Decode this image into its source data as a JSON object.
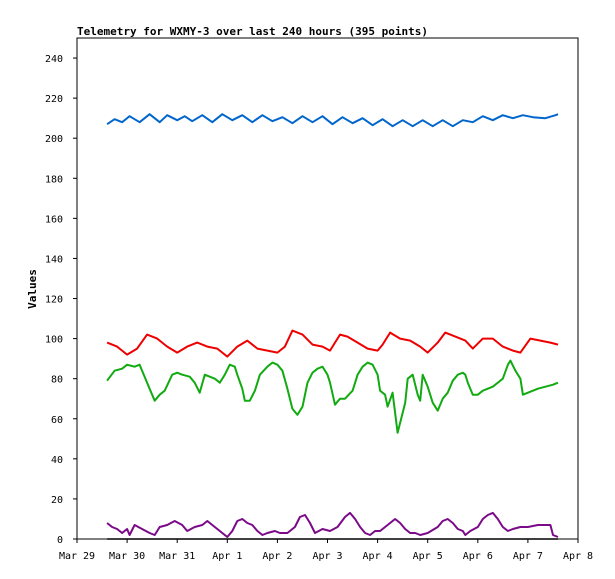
{
  "chart_data": {
    "type": "line",
    "title": "Telemetry for WXMY-3 over last 240 hours (395 points)",
    "xlabel": "",
    "ylabel": "Values",
    "ylim": [
      0,
      250
    ],
    "xlim": [
      "Mar 29",
      "Apr 8"
    ],
    "yticks": [
      0,
      20,
      40,
      60,
      80,
      100,
      120,
      140,
      160,
      180,
      200,
      220,
      240
    ],
    "xticks": [
      "Mar 29",
      "Mar 30",
      "Mar 31",
      "Apr 1",
      "Apr 2",
      "Apr 3",
      "Apr 4",
      "Apr 5",
      "Apr 6",
      "Apr 7",
      "Apr 8"
    ],
    "x_unit": "days since Mar 29 00:00",
    "grid": false,
    "legend": "none",
    "series": [
      {
        "color": "#0066cc",
        "points": [
          [
            0.6,
            207
          ],
          [
            0.75,
            209.5
          ],
          [
            0.9,
            208
          ],
          [
            1.05,
            211
          ],
          [
            1.25,
            208
          ],
          [
            1.45,
            212
          ],
          [
            1.65,
            208
          ],
          [
            1.8,
            211.5
          ],
          [
            2.0,
            209
          ],
          [
            2.15,
            211
          ],
          [
            2.3,
            208.5
          ],
          [
            2.5,
            211.5
          ],
          [
            2.7,
            208
          ],
          [
            2.9,
            212
          ],
          [
            3.1,
            209
          ],
          [
            3.3,
            211.5
          ],
          [
            3.5,
            208
          ],
          [
            3.7,
            211.5
          ],
          [
            3.9,
            208.5
          ],
          [
            4.1,
            210.5
          ],
          [
            4.3,
            207.5
          ],
          [
            4.5,
            211
          ],
          [
            4.7,
            208
          ],
          [
            4.9,
            211
          ],
          [
            5.1,
            207
          ],
          [
            5.3,
            210.5
          ],
          [
            5.5,
            207.5
          ],
          [
            5.7,
            210
          ],
          [
            5.9,
            206.5
          ],
          [
            6.1,
            209.5
          ],
          [
            6.3,
            206
          ],
          [
            6.5,
            209
          ],
          [
            6.7,
            206
          ],
          [
            6.9,
            209
          ],
          [
            7.1,
            206
          ],
          [
            7.3,
            209
          ],
          [
            7.5,
            206
          ],
          [
            7.7,
            209
          ],
          [
            7.9,
            208
          ],
          [
            8.1,
            211
          ],
          [
            8.3,
            209
          ],
          [
            8.5,
            211.5
          ],
          [
            8.7,
            210
          ],
          [
            8.9,
            211.5
          ],
          [
            9.1,
            210.5
          ],
          [
            9.35,
            210
          ],
          [
            9.55,
            211.5
          ],
          [
            9.6,
            212
          ]
        ]
      },
      {
        "color": "#ee0000",
        "points": [
          [
            0.6,
            98
          ],
          [
            0.8,
            96
          ],
          [
            1.0,
            92
          ],
          [
            1.2,
            95
          ],
          [
            1.4,
            102
          ],
          [
            1.6,
            100
          ],
          [
            1.8,
            96
          ],
          [
            2.0,
            93
          ],
          [
            2.2,
            96
          ],
          [
            2.4,
            98
          ],
          [
            2.6,
            96
          ],
          [
            2.8,
            95
          ],
          [
            3.0,
            91
          ],
          [
            3.2,
            96
          ],
          [
            3.4,
            99
          ],
          [
            3.6,
            95
          ],
          [
            3.8,
            94
          ],
          [
            4.0,
            93
          ],
          [
            4.15,
            96
          ],
          [
            4.3,
            104
          ],
          [
            4.5,
            102
          ],
          [
            4.7,
            97
          ],
          [
            4.9,
            96
          ],
          [
            5.05,
            94
          ],
          [
            5.25,
            102
          ],
          [
            5.4,
            101
          ],
          [
            5.6,
            98
          ],
          [
            5.8,
            95
          ],
          [
            6.0,
            94
          ],
          [
            6.1,
            97
          ],
          [
            6.25,
            103
          ],
          [
            6.45,
            100
          ],
          [
            6.65,
            99
          ],
          [
            6.85,
            96
          ],
          [
            7.0,
            93
          ],
          [
            7.2,
            98
          ],
          [
            7.35,
            103
          ],
          [
            7.55,
            101
          ],
          [
            7.75,
            99
          ],
          [
            7.9,
            95
          ],
          [
            8.1,
            100
          ],
          [
            8.3,
            100
          ],
          [
            8.5,
            96
          ],
          [
            8.7,
            94
          ],
          [
            8.85,
            93
          ],
          [
            9.05,
            100
          ],
          [
            9.25,
            99
          ],
          [
            9.45,
            98
          ],
          [
            9.6,
            97
          ]
        ]
      },
      {
        "color": "#11aa11",
        "points": [
          [
            0.6,
            79
          ],
          [
            0.75,
            84
          ],
          [
            0.9,
            85
          ],
          [
            1.0,
            87
          ],
          [
            1.15,
            86
          ],
          [
            1.25,
            87
          ],
          [
            1.45,
            75
          ],
          [
            1.55,
            69
          ],
          [
            1.65,
            72
          ],
          [
            1.75,
            74
          ],
          [
            1.9,
            82
          ],
          [
            2.0,
            83
          ],
          [
            2.1,
            82
          ],
          [
            2.25,
            81
          ],
          [
            2.35,
            78
          ],
          [
            2.45,
            73
          ],
          [
            2.55,
            82
          ],
          [
            2.75,
            80
          ],
          [
            2.85,
            78
          ],
          [
            2.95,
            82
          ],
          [
            3.05,
            87
          ],
          [
            3.15,
            86
          ],
          [
            3.2,
            82
          ],
          [
            3.3,
            75
          ],
          [
            3.35,
            69
          ],
          [
            3.45,
            69
          ],
          [
            3.55,
            74
          ],
          [
            3.65,
            82
          ],
          [
            3.8,
            86
          ],
          [
            3.9,
            88
          ],
          [
            4.0,
            87
          ],
          [
            4.1,
            84
          ],
          [
            4.2,
            75
          ],
          [
            4.3,
            65
          ],
          [
            4.4,
            62
          ],
          [
            4.5,
            66
          ],
          [
            4.6,
            78
          ],
          [
            4.7,
            83
          ],
          [
            4.8,
            85
          ],
          [
            4.9,
            86
          ],
          [
            5.0,
            82
          ],
          [
            5.05,
            78
          ],
          [
            5.15,
            67
          ],
          [
            5.25,
            70
          ],
          [
            5.35,
            70
          ],
          [
            5.5,
            74
          ],
          [
            5.6,
            82
          ],
          [
            5.7,
            86
          ],
          [
            5.8,
            88
          ],
          [
            5.9,
            87
          ],
          [
            6.0,
            82
          ],
          [
            6.05,
            74
          ],
          [
            6.15,
            72
          ],
          [
            6.2,
            66
          ],
          [
            6.3,
            73
          ],
          [
            6.4,
            53
          ],
          [
            6.5,
            63
          ],
          [
            6.55,
            68
          ],
          [
            6.6,
            80
          ],
          [
            6.7,
            82
          ],
          [
            6.8,
            72
          ],
          [
            6.85,
            69
          ],
          [
            6.9,
            82
          ],
          [
            7.0,
            76
          ],
          [
            7.1,
            68
          ],
          [
            7.2,
            64
          ],
          [
            7.3,
            70
          ],
          [
            7.4,
            73
          ],
          [
            7.5,
            79
          ],
          [
            7.6,
            82
          ],
          [
            7.7,
            83
          ],
          [
            7.75,
            82
          ],
          [
            7.8,
            78
          ],
          [
            7.9,
            72
          ],
          [
            8.0,
            72
          ],
          [
            8.1,
            74
          ],
          [
            8.2,
            75
          ],
          [
            8.3,
            76
          ],
          [
            8.5,
            80
          ],
          [
            8.6,
            87
          ],
          [
            8.65,
            89
          ],
          [
            8.75,
            84
          ],
          [
            8.85,
            80
          ],
          [
            8.9,
            72
          ],
          [
            9.0,
            73
          ],
          [
            9.2,
            75
          ],
          [
            9.35,
            76
          ],
          [
            9.5,
            77
          ],
          [
            9.6,
            78
          ]
        ]
      },
      {
        "color": "#7a0a88",
        "points": [
          [
            0.6,
            8
          ],
          [
            0.7,
            6
          ],
          [
            0.8,
            5
          ],
          [
            0.9,
            3
          ],
          [
            1.0,
            5
          ],
          [
            1.05,
            2
          ],
          [
            1.15,
            7
          ],
          [
            1.3,
            5
          ],
          [
            1.45,
            3
          ],
          [
            1.55,
            2
          ],
          [
            1.65,
            6
          ],
          [
            1.8,
            7
          ],
          [
            1.95,
            9
          ],
          [
            2.1,
            7
          ],
          [
            2.2,
            4
          ],
          [
            2.35,
            6
          ],
          [
            2.5,
            7
          ],
          [
            2.6,
            9
          ],
          [
            2.75,
            6
          ],
          [
            2.9,
            3
          ],
          [
            3.0,
            1
          ],
          [
            3.1,
            4
          ],
          [
            3.2,
            9
          ],
          [
            3.3,
            10
          ],
          [
            3.4,
            8
          ],
          [
            3.5,
            7
          ],
          [
            3.6,
            4
          ],
          [
            3.7,
            2
          ],
          [
            3.8,
            3
          ],
          [
            3.95,
            4
          ],
          [
            4.05,
            3
          ],
          [
            4.2,
            3
          ],
          [
            4.35,
            6
          ],
          [
            4.45,
            11
          ],
          [
            4.55,
            12
          ],
          [
            4.65,
            8
          ],
          [
            4.75,
            3
          ],
          [
            4.9,
            5
          ],
          [
            5.05,
            4
          ],
          [
            5.2,
            6
          ],
          [
            5.35,
            11
          ],
          [
            5.45,
            13
          ],
          [
            5.55,
            10
          ],
          [
            5.65,
            6
          ],
          [
            5.75,
            3
          ],
          [
            5.85,
            2
          ],
          [
            5.95,
            4
          ],
          [
            6.05,
            4
          ],
          [
            6.15,
            6
          ],
          [
            6.25,
            8
          ],
          [
            6.35,
            10
          ],
          [
            6.45,
            8
          ],
          [
            6.55,
            5
          ],
          [
            6.65,
            3
          ],
          [
            6.75,
            3
          ],
          [
            6.85,
            2
          ],
          [
            7.0,
            3
          ],
          [
            7.2,
            6
          ],
          [
            7.3,
            9
          ],
          [
            7.4,
            10
          ],
          [
            7.5,
            8
          ],
          [
            7.6,
            5
          ],
          [
            7.7,
            4
          ],
          [
            7.75,
            2
          ],
          [
            7.85,
            4
          ],
          [
            8.0,
            6
          ],
          [
            8.1,
            10
          ],
          [
            8.2,
            12
          ],
          [
            8.3,
            13
          ],
          [
            8.4,
            10
          ],
          [
            8.5,
            6
          ],
          [
            8.6,
            4
          ],
          [
            8.7,
            5
          ],
          [
            8.85,
            6
          ],
          [
            9.0,
            6
          ],
          [
            9.2,
            7
          ],
          [
            9.45,
            7
          ],
          [
            9.5,
            2
          ],
          [
            9.6,
            1
          ]
        ]
      },
      {
        "color": "#000000",
        "points": [
          [
            0.6,
            0
          ],
          [
            9.6,
            0
          ]
        ]
      }
    ]
  }
}
